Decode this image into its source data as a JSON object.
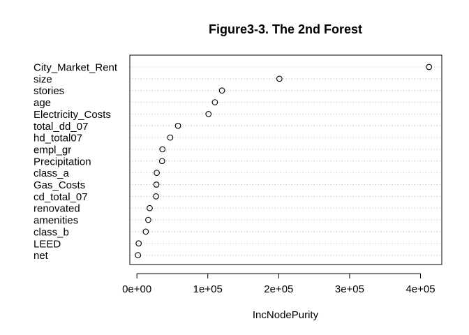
{
  "chart_data": {
    "type": "dotchart",
    "title": "Figure3-3. The 2nd Forest",
    "xlabel": "IncNodePurity",
    "ylabel": "",
    "xlim": [
      -10000,
      430000
    ],
    "x_ticks": [
      0,
      100000,
      200000,
      300000,
      400000
    ],
    "x_tick_labels": [
      "0e+00",
      "1e+05",
      "2e+05",
      "3e+05",
      "4e+05"
    ],
    "grid": "dotted horizontal lines per variable",
    "categories": [
      "City_Market_Rent",
      "size",
      "stories",
      "age",
      "Electricity_Costs",
      "total_dd_07",
      "hd_total07",
      "empl_gr",
      "Precipitation",
      "class_a",
      "Gas_Costs",
      "cd_total_07",
      "renovated",
      "amenities",
      "class_b",
      "LEED",
      "net"
    ],
    "values": [
      412000,
      201000,
      120000,
      110000,
      101000,
      58000,
      47000,
      36000,
      35500,
      28000,
      27500,
      27000,
      18000,
      16000,
      12500,
      2500,
      1500
    ]
  },
  "colors": {
    "axis": "#000000",
    "grid": "#bbbbbb",
    "marker_stroke": "#000000",
    "background": "#ffffff"
  }
}
